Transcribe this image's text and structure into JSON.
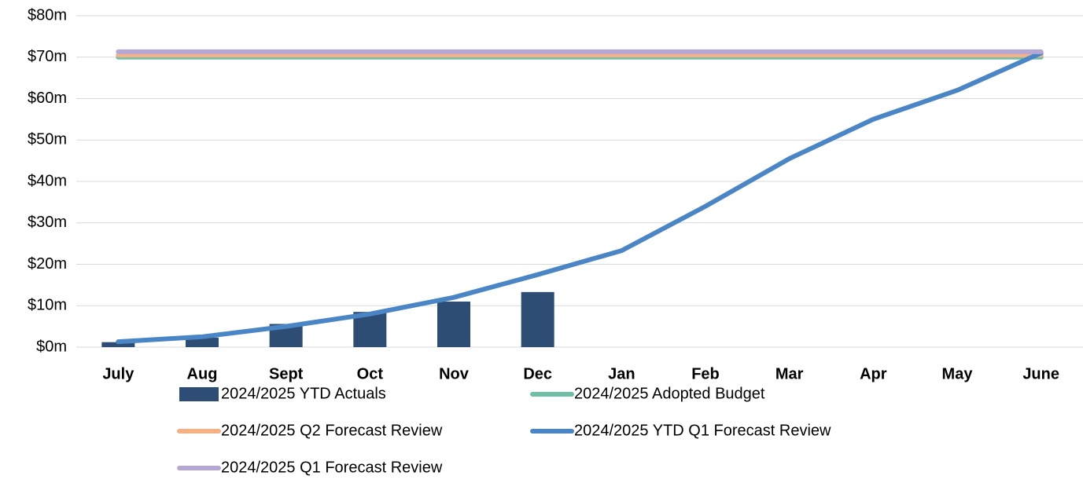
{
  "chart_data": {
    "type": "combo",
    "categories": [
      "July",
      "Aug",
      "Sept",
      "Oct",
      "Nov",
      "Dec",
      "Jan",
      "Feb",
      "Mar",
      "Apr",
      "May",
      "June"
    ],
    "series": [
      {
        "name": "2024/2025 YTD Actuals",
        "type": "bar",
        "color": "#2e4d75",
        "values": [
          1.2,
          2.3,
          5.6,
          8.5,
          11,
          13.3,
          null,
          null,
          null,
          null,
          null,
          null
        ]
      },
      {
        "name": "2024/2025 Adopted Budget",
        "type": "line",
        "color": "#6fbfa8",
        "values": [
          70,
          70,
          70,
          70,
          70,
          70,
          70,
          70,
          70,
          70,
          70,
          70
        ]
      },
      {
        "name": "2024/2025 Q2 Forecast Review",
        "type": "line",
        "color": "#f4b183",
        "values": [
          70.5,
          70.5,
          70.5,
          70.5,
          70.5,
          70.5,
          70.5,
          70.5,
          70.5,
          70.5,
          70.5,
          70.5
        ]
      },
      {
        "name": "2024/2025 YTD Q1 Forecast Review",
        "type": "line",
        "color": "#4a86c5",
        "values": [
          1.3,
          2.5,
          5,
          8,
          12,
          17.5,
          23.3,
          34,
          45.5,
          55,
          62,
          71
        ]
      },
      {
        "name": "2024/2025 Q1 Forecast Review",
        "type": "line",
        "color": "#b4a7d6",
        "values": [
          71.3,
          71.3,
          71.3,
          71.3,
          71.3,
          71.3,
          71.3,
          71.3,
          71.3,
          71.3,
          71.3,
          71.3
        ]
      }
    ],
    "ylim": [
      0,
      80
    ],
    "yticks": [
      {
        "value": 0,
        "label": "$0m"
      },
      {
        "value": 10,
        "label": "$10m"
      },
      {
        "value": 20,
        "label": "$20m"
      },
      {
        "value": 30,
        "label": "$30m"
      },
      {
        "value": 40,
        "label": "$40m"
      },
      {
        "value": 50,
        "label": "$50m"
      },
      {
        "value": 60,
        "label": "$60m"
      },
      {
        "value": 70,
        "label": "$70m"
      },
      {
        "value": 80,
        "label": "$80m"
      }
    ],
    "grid": true,
    "legend": "bottom"
  }
}
